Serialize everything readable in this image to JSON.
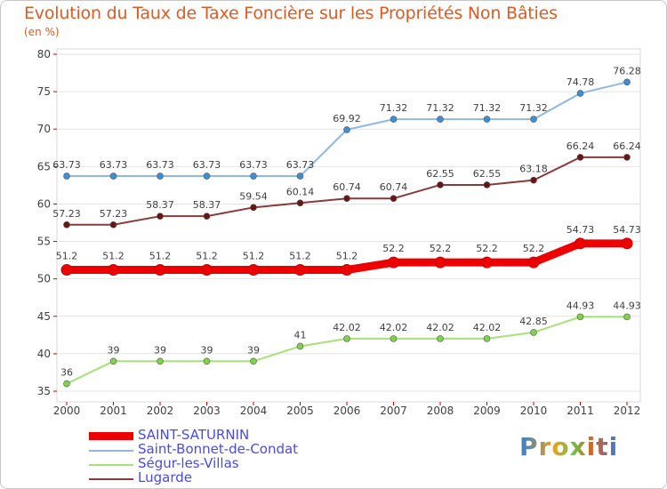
{
  "header": {
    "title": "Evolution du Taux de Taxe Foncière sur les Propriétés Non Bâties",
    "unit": "(en %)"
  },
  "logo": {
    "text": "Proxiti"
  },
  "chart_data": {
    "type": "line",
    "title": "Evolution du Taux de Taxe Foncière sur les Propriétés Non Bâties",
    "ylabel": "(en %)",
    "xlabel": "",
    "categories": [
      "2000",
      "2001",
      "2002",
      "2003",
      "2004",
      "2005",
      "2006",
      "2007",
      "2008",
      "2009",
      "2010",
      "2011",
      "2012"
    ],
    "ylim": [
      35,
      80
    ],
    "yticks": [
      35,
      40,
      45,
      50,
      55,
      60,
      65,
      70,
      75,
      80
    ],
    "grid": "horizontal",
    "legend_position": "bottom-left",
    "series": [
      {
        "name": "SAINT-SATURNIN",
        "color": "#ee0000",
        "marker_color": "#ee0000",
        "values": [
          51.2,
          51.2,
          51.2,
          51.2,
          51.2,
          51.2,
          51.2,
          52.2,
          52.2,
          52.2,
          52.2,
          54.73,
          54.73
        ],
        "labels": [
          "51.2",
          "51.2",
          "51.2",
          "51.2",
          "51.2",
          "51.2",
          "51.2",
          "52.2",
          "52.2",
          "52.2",
          "52.2",
          "54.73",
          "54.73"
        ]
      },
      {
        "name": "Saint-Bonnet-de-Condat",
        "color": "#8fb8dc",
        "marker_color": "#3a8fd6",
        "values": [
          63.73,
          63.73,
          63.73,
          63.73,
          63.73,
          63.73,
          69.92,
          71.32,
          71.32,
          71.32,
          71.32,
          74.78,
          76.28
        ],
        "labels": [
          "63.73",
          "63.73",
          "63.73",
          "63.73",
          "63.73",
          "63.73",
          "69.92",
          "71.32",
          "71.32",
          "71.32",
          "71.32",
          "74.78",
          "76.28"
        ]
      },
      {
        "name": "Ségur-les-Villas",
        "color": "#a8e07a",
        "marker_color": "#7fd24a",
        "values": [
          36,
          39,
          39,
          39,
          39,
          41,
          42.02,
          42.02,
          42.02,
          42.02,
          42.85,
          44.93,
          44.93
        ],
        "labels": [
          "36",
          "39",
          "39",
          "39",
          "39",
          "41",
          "42.02",
          "42.02",
          "42.02",
          "42.02",
          "42.85",
          "44.93",
          "44.93"
        ]
      },
      {
        "name": "Lugarde",
        "color": "#8a3a3a",
        "marker_color": "#6a1414",
        "values": [
          57.23,
          57.23,
          58.37,
          58.37,
          59.54,
          60.14,
          60.74,
          60.74,
          62.55,
          62.55,
          63.18,
          66.24,
          66.24
        ],
        "labels": [
          "57.23",
          "57.23",
          "58.37",
          "58.37",
          "59.54",
          "60.14",
          "60.74",
          "60.74",
          "62.55",
          "62.55",
          "63.18",
          "66.24",
          "66.24"
        ]
      }
    ]
  }
}
